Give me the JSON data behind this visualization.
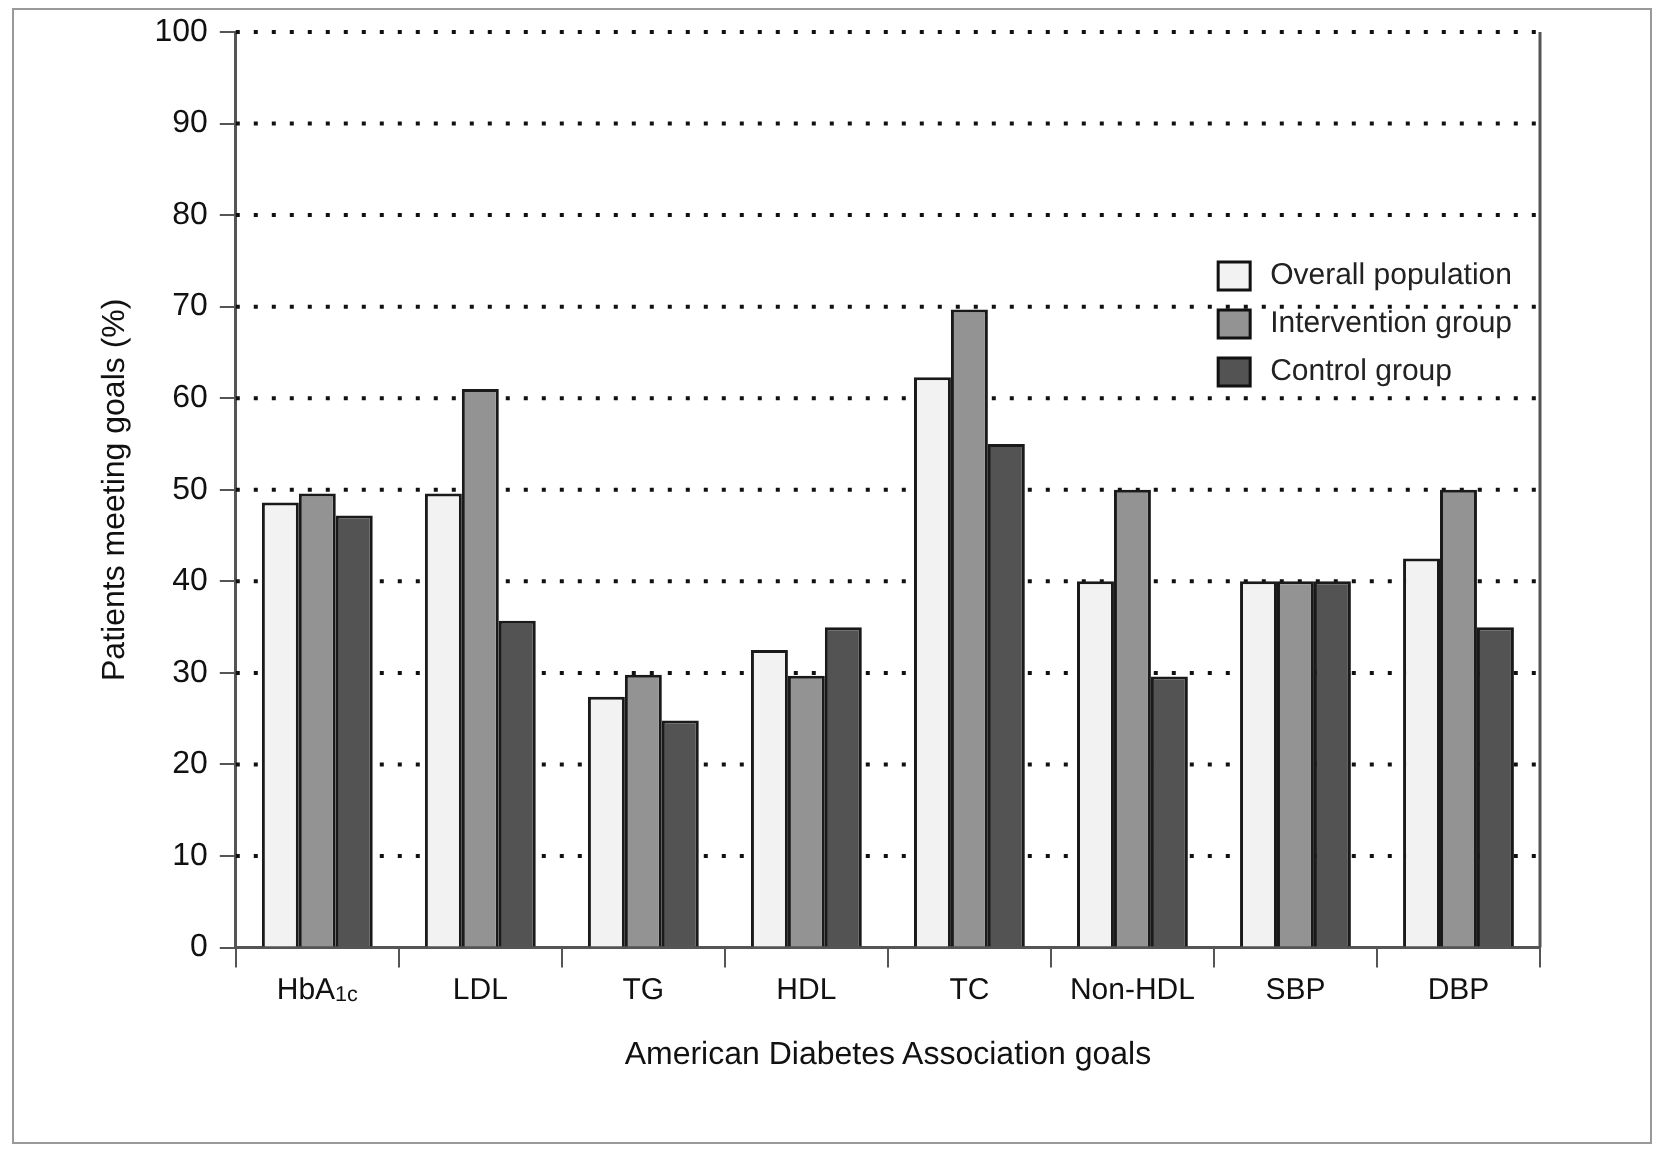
{
  "chart_data": {
    "type": "bar",
    "xlabel": "American Diabetes Association goals",
    "ylabel": "Patients meeting goals (%)",
    "categories": [
      "HbA$_{1c}$",
      "LDL",
      "TG",
      "HDL",
      "TC",
      "Non-HDL",
      "SBP",
      "DBP"
    ],
    "series": [
      {
        "name": "Overall population",
        "color": "#f2f2f2",
        "values": [
          48.6,
          49.6,
          27.4,
          32.5,
          62.3,
          40,
          40,
          42.5
        ]
      },
      {
        "name": "Intervention group",
        "color": "#939393",
        "values": [
          49.6,
          61,
          29.8,
          29.7,
          69.7,
          50,
          40,
          50
        ]
      },
      {
        "name": "Control group",
        "color": "#535353",
        "values": [
          47.2,
          35.7,
          24.8,
          35,
          55,
          29.6,
          40,
          35
        ]
      }
    ],
    "ylim": [
      0,
      100
    ],
    "yticks": [
      0,
      10,
      20,
      30,
      40,
      50,
      60,
      70,
      80,
      90,
      100
    ],
    "grid": "y",
    "legend": "top right"
  }
}
